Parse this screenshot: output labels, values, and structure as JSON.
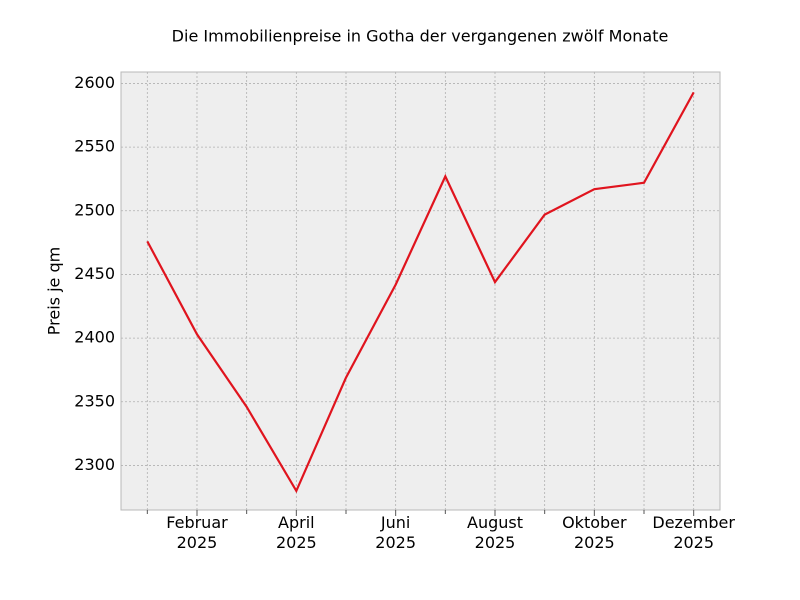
{
  "chart_data": {
    "type": "line",
    "title": "Die Immobilienpreise in Gotha der vergangenen zwölf Monate",
    "y_label": "Preis je qm",
    "categories": [
      null,
      "Februar\n2025",
      null,
      "April\n2025",
      null,
      "Juni\n2025",
      null,
      "August\n2025",
      null,
      "Oktober\n2025",
      null,
      "Dezember\n2025"
    ],
    "values": [
      2476,
      2403,
      2346,
      2280,
      2369,
      2442,
      2527,
      2444,
      2497,
      2517,
      2522,
      2593
    ],
    "color": "#e0141e",
    "ylim": [
      2265,
      2609
    ],
    "yticks": [
      2300,
      2350,
      2400,
      2450,
      2500,
      2550,
      2600
    ],
    "grid": true
  }
}
